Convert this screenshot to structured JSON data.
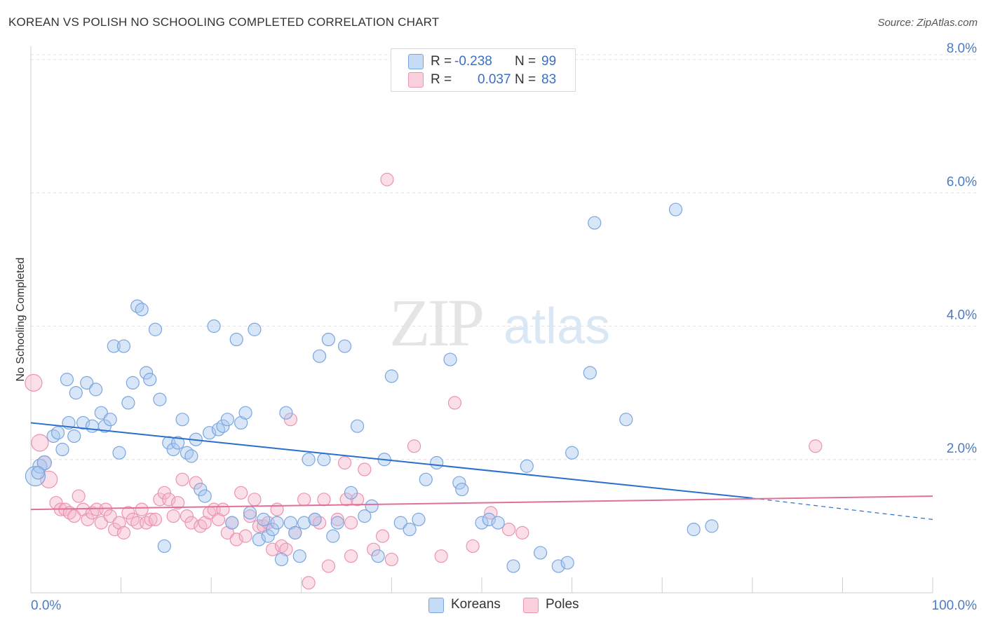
{
  "header": {
    "title": "KOREAN VS POLISH NO SCHOOLING COMPLETED CORRELATION CHART",
    "source": "Source: ZipAtlas.com"
  },
  "watermark": {
    "zip": "ZIP",
    "atlas": "atlas"
  },
  "legend": {
    "rows": [
      {
        "r_label": "R =",
        "r_value": "-0.238",
        "n_label": "N =",
        "n_value": "99",
        "color": "#a8c8f0"
      },
      {
        "r_label": "R =",
        "r_value": "0.037",
        "n_label": "N =",
        "n_value": "83",
        "color": "#f5b8cc"
      }
    ]
  },
  "bottom_legend": {
    "koreans": "Koreans",
    "poles": "Poles"
  },
  "colors": {
    "blue_fill": "#a8c8f0",
    "blue_stroke": "#7aa6e0",
    "blue_line": "#2a6fcf",
    "pink_fill": "#f5b8cc",
    "pink_stroke": "#ec93b0",
    "pink_line": "#e0709a",
    "tick": "#4a7bc8"
  },
  "chart_data": {
    "type": "scatter",
    "title": "KOREAN VS POLISH NO SCHOOLING COMPLETED CORRELATION CHART",
    "ylabel": "No Schooling Completed",
    "xlabel": "",
    "xlim": [
      0,
      100
    ],
    "ylim": [
      0,
      8.2
    ],
    "x_ticks": [
      "0.0%",
      "100.0%"
    ],
    "y_ticks": [
      {
        "value": 2,
        "label": "2.0%"
      },
      {
        "value": 4,
        "label": "4.0%"
      },
      {
        "value": 6,
        "label": "6.0%"
      },
      {
        "value": 8,
        "label": "8.0%"
      }
    ],
    "grid": "horizontal dashed",
    "series": [
      {
        "name": "Koreans",
        "r": -0.238,
        "n": 99,
        "trend": {
          "x0": 0,
          "y0": 2.55,
          "x1": 80,
          "y1": 1.42,
          "dash_to_x": 100,
          "dash_to_y": 1.1
        },
        "points": [
          [
            0.5,
            1.75,
            14
          ],
          [
            1,
            1.9,
            10
          ],
          [
            1.5,
            1.95,
            10
          ],
          [
            2.5,
            2.35,
            9
          ],
          [
            3,
            2.4,
            9
          ],
          [
            3.5,
            2.15,
            9
          ],
          [
            4,
            3.2,
            9
          ],
          [
            4.2,
            2.55,
            9
          ],
          [
            4.8,
            2.35,
            9
          ],
          [
            5,
            3.0,
            9
          ],
          [
            5.8,
            2.55,
            9
          ],
          [
            6.2,
            3.15,
            9
          ],
          [
            6.8,
            2.5,
            9
          ],
          [
            7.2,
            3.05,
            9
          ],
          [
            7.8,
            2.7,
            9
          ],
          [
            8.2,
            2.5,
            9
          ],
          [
            8.8,
            2.6,
            9
          ],
          [
            9.2,
            3.7,
            9
          ],
          [
            9.8,
            2.1,
            9
          ],
          [
            10.3,
            3.7,
            9
          ],
          [
            10.8,
            2.85,
            9
          ],
          [
            11.3,
            3.15,
            9
          ],
          [
            11.8,
            4.3,
            9
          ],
          [
            12.3,
            4.25,
            9
          ],
          [
            12.8,
            3.3,
            9
          ],
          [
            13.2,
            3.2,
            9
          ],
          [
            13.8,
            3.95,
            9
          ],
          [
            14.3,
            2.9,
            9
          ],
          [
            14.8,
            0.7,
            9
          ],
          [
            15.3,
            2.25,
            9
          ],
          [
            15.8,
            2.15,
            9
          ],
          [
            16.3,
            2.25,
            9
          ],
          [
            16.8,
            2.6,
            9
          ],
          [
            17.3,
            2.1,
            9
          ],
          [
            17.8,
            2.05,
            9
          ],
          [
            18.3,
            2.3,
            9
          ],
          [
            18.8,
            1.55,
            9
          ],
          [
            19.3,
            1.45,
            9
          ],
          [
            19.8,
            2.4,
            9
          ],
          [
            20.3,
            4.0,
            9
          ],
          [
            20.8,
            2.45,
            9
          ],
          [
            21.3,
            2.5,
            9
          ],
          [
            21.8,
            2.6,
            9
          ],
          [
            22.3,
            1.05,
            9
          ],
          [
            22.8,
            3.8,
            9
          ],
          [
            23.3,
            2.55,
            9
          ],
          [
            23.8,
            2.7,
            9
          ],
          [
            24.3,
            1.2,
            9
          ],
          [
            24.8,
            3.95,
            9
          ],
          [
            25.3,
            0.8,
            9
          ],
          [
            25.8,
            1.1,
            9
          ],
          [
            26.3,
            0.85,
            9
          ],
          [
            26.8,
            0.95,
            9
          ],
          [
            27.3,
            1.05,
            9
          ],
          [
            27.8,
            0.5,
            9
          ],
          [
            28.3,
            2.7,
            9
          ],
          [
            28.8,
            1.05,
            9
          ],
          [
            29.3,
            0.9,
            9
          ],
          [
            29.8,
            0.55,
            9
          ],
          [
            30.3,
            1.05,
            9
          ],
          [
            30.8,
            2.0,
            9
          ],
          [
            31.5,
            1.1,
            9
          ],
          [
            32.0,
            3.55,
            9
          ],
          [
            32.5,
            2.0,
            9
          ],
          [
            33.0,
            3.8,
            9
          ],
          [
            33.5,
            0.85,
            9
          ],
          [
            34.0,
            1.05,
            9
          ],
          [
            34.8,
            3.7,
            9
          ],
          [
            35.5,
            1.5,
            9
          ],
          [
            36.2,
            2.5,
            9
          ],
          [
            37.0,
            1.15,
            9
          ],
          [
            37.8,
            1.3,
            9
          ],
          [
            38.5,
            0.55,
            9
          ],
          [
            39.2,
            2.0,
            9
          ],
          [
            40.0,
            3.25,
            9
          ],
          [
            41.0,
            1.05,
            9
          ],
          [
            42.0,
            0.95,
            9
          ],
          [
            43.0,
            1.1,
            9
          ],
          [
            43.8,
            1.7,
            9
          ],
          [
            45.0,
            1.95,
            9
          ],
          [
            46.5,
            3.5,
            9
          ],
          [
            47.5,
            1.65,
            9
          ],
          [
            47.8,
            1.55,
            9
          ],
          [
            50.0,
            1.05,
            9
          ],
          [
            50.8,
            1.1,
            9
          ],
          [
            51.8,
            1.05,
            9
          ],
          [
            53.5,
            0.4,
            9
          ],
          [
            55.0,
            1.9,
            9
          ],
          [
            56.5,
            0.6,
            9
          ],
          [
            58.5,
            0.4,
            9
          ],
          [
            59.5,
            0.45,
            9
          ],
          [
            60.0,
            2.1,
            9
          ],
          [
            62.0,
            3.3,
            9
          ],
          [
            62.5,
            5.55,
            9
          ],
          [
            66.0,
            2.6,
            9
          ],
          [
            71.5,
            5.75,
            9
          ],
          [
            73.5,
            0.95,
            9
          ],
          [
            75.5,
            1.0,
            9
          ],
          [
            0.8,
            1.8,
            9
          ]
        ]
      },
      {
        "name": "Poles",
        "r": 0.037,
        "n": 83,
        "trend": {
          "x0": 0,
          "y0": 1.25,
          "x1": 100,
          "y1": 1.45
        },
        "points": [
          [
            0.3,
            3.15,
            12
          ],
          [
            1,
            2.25,
            12
          ],
          [
            1.5,
            1.95,
            10
          ],
          [
            2,
            1.7,
            12
          ],
          [
            2.8,
            1.35,
            9
          ],
          [
            3.3,
            1.25,
            9
          ],
          [
            3.8,
            1.25,
            9
          ],
          [
            4.3,
            1.2,
            9
          ],
          [
            4.8,
            1.15,
            9
          ],
          [
            5.3,
            1.45,
            9
          ],
          [
            5.8,
            1.25,
            9
          ],
          [
            6.3,
            1.1,
            9
          ],
          [
            6.8,
            1.2,
            9
          ],
          [
            7.3,
            1.25,
            9
          ],
          [
            7.8,
            1.05,
            9
          ],
          [
            8.3,
            1.25,
            9
          ],
          [
            8.8,
            1.15,
            9
          ],
          [
            9.3,
            0.95,
            9
          ],
          [
            9.8,
            1.05,
            9
          ],
          [
            10.3,
            0.9,
            9
          ],
          [
            10.8,
            1.2,
            9
          ],
          [
            11.3,
            1.1,
            9
          ],
          [
            11.8,
            1.05,
            9
          ],
          [
            12.3,
            1.25,
            9
          ],
          [
            12.8,
            1.05,
            9
          ],
          [
            13.3,
            1.1,
            9
          ],
          [
            13.8,
            1.1,
            9
          ],
          [
            14.3,
            1.4,
            9
          ],
          [
            14.8,
            1.5,
            9
          ],
          [
            15.3,
            1.4,
            9
          ],
          [
            15.8,
            1.15,
            9
          ],
          [
            16.3,
            1.35,
            9
          ],
          [
            16.8,
            1.7,
            9
          ],
          [
            17.3,
            1.15,
            9
          ],
          [
            17.8,
            1.05,
            9
          ],
          [
            18.3,
            1.65,
            9
          ],
          [
            18.8,
            1.0,
            9
          ],
          [
            19.3,
            1.05,
            9
          ],
          [
            19.8,
            1.2,
            9
          ],
          [
            20.3,
            1.25,
            9
          ],
          [
            20.8,
            1.1,
            9
          ],
          [
            21.3,
            1.25,
            9
          ],
          [
            21.8,
            0.9,
            9
          ],
          [
            22.3,
            1.05,
            9
          ],
          [
            22.8,
            0.8,
            9
          ],
          [
            23.3,
            1.5,
            9
          ],
          [
            23.8,
            0.85,
            9
          ],
          [
            24.3,
            1.15,
            9
          ],
          [
            24.8,
            1.4,
            9
          ],
          [
            25.3,
            1.0,
            9
          ],
          [
            25.8,
            1.0,
            9
          ],
          [
            26.3,
            1.05,
            9
          ],
          [
            26.8,
            0.65,
            9
          ],
          [
            27.3,
            1.25,
            9
          ],
          [
            27.8,
            0.7,
            9
          ],
          [
            28.3,
            0.65,
            9
          ],
          [
            28.8,
            2.6,
            9
          ],
          [
            29.3,
            0.9,
            9
          ],
          [
            30.3,
            1.4,
            9
          ],
          [
            30.8,
            0.15,
            9
          ],
          [
            31.5,
            1.1,
            9
          ],
          [
            32.0,
            1.05,
            9
          ],
          [
            32.5,
            1.4,
            9
          ],
          [
            33.0,
            0.4,
            9
          ],
          [
            34.0,
            1.1,
            9
          ],
          [
            34.8,
            1.95,
            9
          ],
          [
            35.0,
            1.4,
            9
          ],
          [
            35.5,
            0.55,
            9
          ],
          [
            36.2,
            1.4,
            9
          ],
          [
            37.0,
            1.85,
            9
          ],
          [
            38.0,
            0.65,
            9
          ],
          [
            39.0,
            0.85,
            9
          ],
          [
            39.5,
            6.2,
            9
          ],
          [
            40.0,
            0.5,
            9
          ],
          [
            42.5,
            2.2,
            9
          ],
          [
            45.5,
            0.55,
            9
          ],
          [
            47.0,
            2.85,
            9
          ],
          [
            49.0,
            0.7,
            9
          ],
          [
            51.0,
            1.2,
            9
          ],
          [
            53.0,
            0.95,
            9
          ],
          [
            54.5,
            0.9,
            9
          ],
          [
            87.0,
            2.2,
            9
          ],
          [
            35.5,
            1.05,
            9
          ]
        ]
      }
    ]
  }
}
